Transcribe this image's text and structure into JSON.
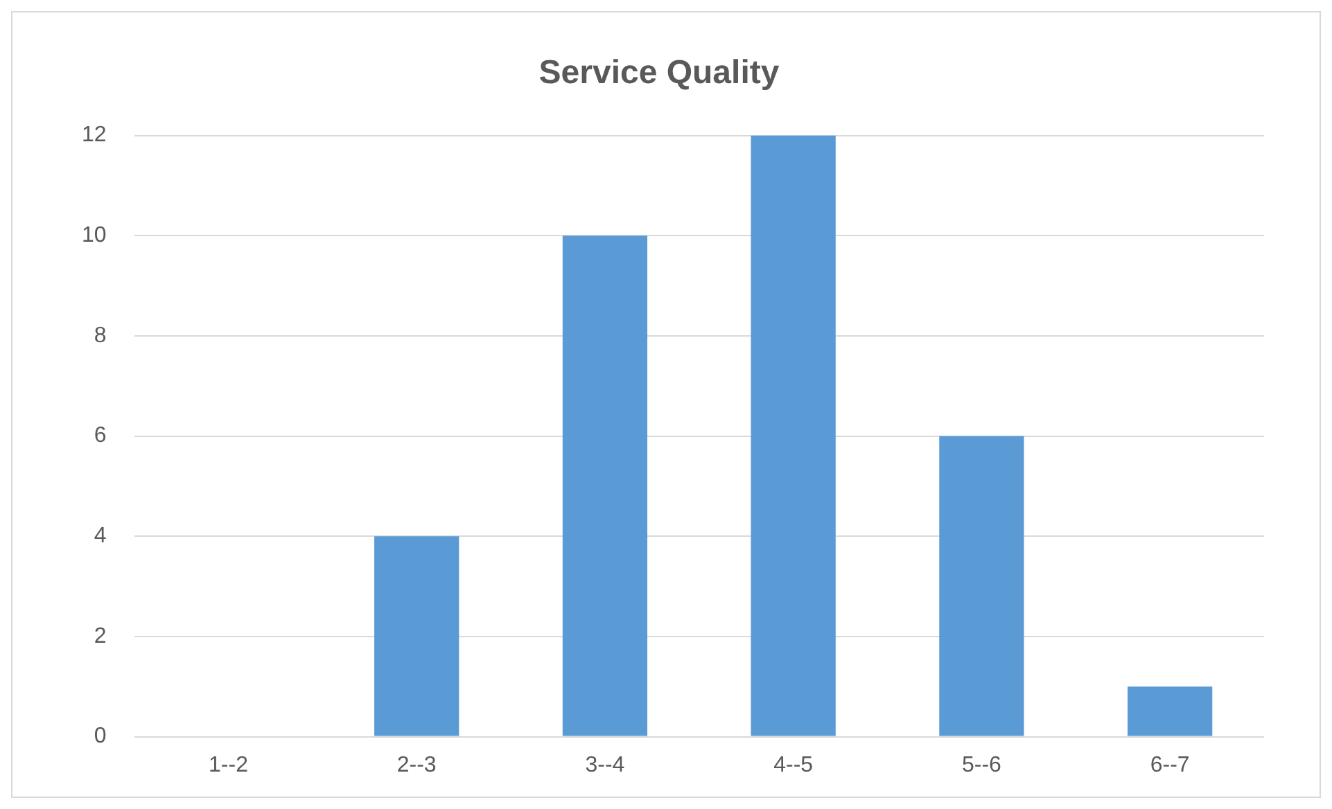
{
  "chart_data": {
    "type": "bar",
    "title": "Service Quality",
    "categories": [
      "1--2",
      "2--3",
      "3--4",
      "4--5",
      "5--6",
      "6--7"
    ],
    "values": [
      0,
      4,
      10,
      12,
      6,
      1
    ],
    "color": "#5b9bd5",
    "ylim": [
      0,
      12
    ],
    "yticks": [
      0,
      2,
      4,
      6,
      8,
      10,
      12
    ],
    "grid": "y"
  }
}
